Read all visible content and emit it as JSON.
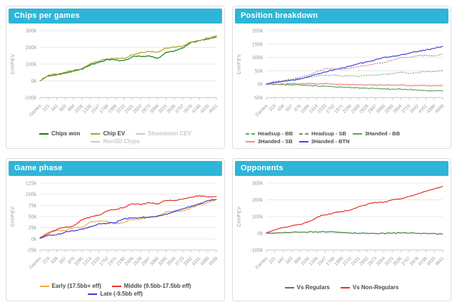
{
  "theme": {
    "header_bg": "#2eb5d8",
    "header_text": "#ffffff",
    "panel_border": "#dddddd",
    "grid_color": "#e8e8e8",
    "axis_color": "#c6c6c6",
    "tick_text_color": "#9a9a9a",
    "legend_text_color": "#4a4a4a",
    "legend_disabled_color": "#c9c9c9"
  },
  "chart_data": [
    {
      "title": "Chips per games",
      "type": "line",
      "ylabel": "CHIPEV",
      "unit": "k",
      "ylim": [
        -100,
        300
      ],
      "yticks": [
        300,
        200,
        100,
        0,
        -100
      ],
      "ytick_labels": [
        "300k",
        "200k",
        "100k",
        "0k",
        "-100k"
      ],
      "x": [
        0,
        221,
        442,
        663,
        884,
        1105,
        1326,
        1547,
        1768,
        1989,
        2210,
        2431,
        2652,
        2873,
        3094,
        3315,
        3536,
        3757,
        3978,
        4199,
        4420,
        4641
      ],
      "xtick_labels": [
        "Games",
        "221",
        "442",
        "663",
        "884",
        "1105",
        "1326",
        "1547",
        "1768",
        "1989",
        "2210",
        "2431",
        "2652",
        "2873",
        "3094",
        "3315",
        "3536",
        "3757",
        "3978",
        "4199",
        "4420",
        "4641"
      ],
      "legend_layout": "center",
      "series": [
        {
          "name": "Chips won",
          "color": "#1c7a1c",
          "dash": "solid",
          "disabled": false,
          "values": [
            0,
            30,
            36,
            48,
            58,
            68,
            95,
            110,
            127,
            125,
            121,
            144,
            146,
            150,
            133,
            170,
            178,
            196,
            230,
            242,
            250,
            262
          ]
        },
        {
          "name": "Chip EV",
          "color": "#a8a227",
          "dash": "solid",
          "disabled": false,
          "values": [
            0,
            33,
            40,
            50,
            62,
            74,
            103,
            118,
            132,
            135,
            134,
            155,
            170,
            176,
            172,
            196,
            202,
            207,
            232,
            240,
            256,
            270
          ]
        },
        {
          "name": "Showdown CEV",
          "color": "#c9c9c9",
          "dash": "solid",
          "disabled": true,
          "values": []
        },
        {
          "name": "NonSD Chips",
          "color": "#c9c9c9",
          "dash": "solid",
          "disabled": true,
          "values": []
        }
      ]
    },
    {
      "title": "Position breakdown",
      "type": "line",
      "ylabel": "CHIPEV",
      "unit": "k",
      "ylim": [
        -50,
        200
      ],
      "yticks": [
        200,
        150,
        100,
        50,
        0,
        -50
      ],
      "ytick_labels": [
        "200k",
        "150k",
        "100k",
        "50k",
        "0k",
        "-50k"
      ],
      "x": [
        0,
        219,
        438,
        657,
        876,
        1095,
        1314,
        1533,
        1752,
        1971,
        2190,
        2409,
        2628,
        2847,
        3066,
        3285,
        3504,
        3723,
        3942,
        4161,
        4380,
        4599
      ],
      "xtick_labels": [
        "Games",
        "219",
        "438",
        "657",
        "876",
        "1095",
        "1314",
        "1533",
        "1752",
        "1971",
        "2190",
        "2409",
        "2628",
        "2847",
        "3066",
        "3285",
        "3504",
        "3723",
        "3942",
        "4161",
        "4380",
        "4599"
      ],
      "legend_layout": "left",
      "series": [
        {
          "name": "Headsup - BB",
          "color": "#5ba75b",
          "dash": "dotted",
          "disabled": false,
          "values": [
            0,
            8,
            12,
            15,
            18,
            25,
            30,
            34,
            35,
            30,
            32,
            29,
            34,
            34,
            36,
            40,
            45,
            40,
            43,
            47,
            47,
            51
          ]
        },
        {
          "name": "Headsup - SB",
          "color": "#b06d69",
          "dash": "dotted",
          "disabled": false,
          "values": [
            0,
            8,
            13,
            18,
            26,
            32,
            47,
            58,
            57,
            55,
            60,
            66,
            70,
            76,
            80,
            90,
            100,
            100,
            107,
            108,
            105,
            112
          ]
        },
        {
          "name": "3Handed - BB",
          "color": "#5fa75f",
          "dash": "solid",
          "disabled": false,
          "values": [
            0,
            0,
            -1,
            -2,
            -3,
            -5,
            -6,
            -8,
            -9,
            -11,
            -12,
            -14,
            -15,
            -16,
            -17,
            -18,
            -19,
            -20,
            -22,
            -24,
            -24,
            -26
          ]
        },
        {
          "name": "3Handed - SB",
          "color": "#f28b8b",
          "dash": "solid",
          "disabled": false,
          "values": [
            0,
            2,
            1,
            3,
            2,
            3,
            1,
            3,
            0,
            -1,
            -2,
            -2,
            -3,
            -3,
            -4,
            -4,
            -4,
            -5,
            -5,
            -5,
            -6,
            -5
          ]
        },
        {
          "name": "3Handed - BTN",
          "color": "#4444e0",
          "dash": "solid",
          "disabled": false,
          "values": [
            0,
            7,
            11,
            15,
            20,
            28,
            37,
            45,
            54,
            60,
            68,
            77,
            84,
            92,
            100,
            104,
            110,
            116,
            122,
            128,
            134,
            141
          ]
        }
      ]
    },
    {
      "title": "Game phase",
      "type": "line",
      "ylabel": "CHIPEV",
      "unit": "k",
      "ylim": [
        -25,
        125
      ],
      "yticks": [
        125,
        100,
        75,
        50,
        25,
        0,
        -25
      ],
      "ytick_labels": [
        "125k",
        "100k",
        "75k",
        "50k",
        "25k",
        "0k",
        "-25k"
      ],
      "x": [
        0,
        219,
        438,
        657,
        876,
        1095,
        1314,
        1533,
        1752,
        1971,
        2190,
        2409,
        2628,
        2847,
        3066,
        3285,
        3504,
        3723,
        3942,
        4161,
        4380,
        4599
      ],
      "xtick_labels": [
        "Games",
        "219",
        "438",
        "657",
        "876",
        "1095",
        "1314",
        "1533",
        "1752",
        "1971",
        "2190",
        "2409",
        "2628",
        "2847",
        "3066",
        "3285",
        "3504",
        "3723",
        "3942",
        "4161",
        "4380",
        "4599"
      ],
      "legend_layout": "center",
      "series": [
        {
          "name": "Early (17.5bb+ eff)",
          "color": "#f5a94f",
          "dash": "solid",
          "disabled": false,
          "values": [
            2,
            15,
            19,
            18,
            25,
            25,
            38,
            40,
            39,
            34,
            37,
            43,
            45,
            49,
            50,
            61,
            60,
            63,
            70,
            76,
            81,
            88
          ]
        },
        {
          "name": "Middle (9.5bb-17.5bb eff)",
          "color": "#e63328",
          "dash": "solid",
          "disabled": false,
          "values": [
            2,
            12,
            21,
            26,
            29,
            43,
            49,
            53,
            63,
            66,
            70,
            79,
            77,
            81,
            78,
            86,
            86,
            89,
            93,
            97,
            94,
            95
          ]
        },
        {
          "name": "Late (-9.5bb eff)",
          "color": "#3a3ad1",
          "dash": "solid",
          "disabled": false,
          "values": [
            1,
            8,
            9,
            15,
            18,
            22,
            27,
            34,
            35,
            36,
            45,
            47,
            48,
            48,
            51,
            55,
            62,
            67,
            73,
            78,
            86,
            88
          ]
        }
      ]
    },
    {
      "title": "Opponents",
      "type": "line",
      "ylabel": "CHIPEV",
      "unit": "k",
      "ylim": [
        -100,
        300
      ],
      "yticks": [
        300,
        200,
        100,
        0,
        -100
      ],
      "ytick_labels": [
        "300k",
        "200k",
        "100k",
        "0k",
        "-100k"
      ],
      "x": [
        0,
        221,
        442,
        663,
        884,
        1105,
        1326,
        1547,
        1768,
        1989,
        2210,
        2431,
        2652,
        2873,
        3094,
        3315,
        3536,
        3757,
        3978,
        4199,
        4420,
        4641
      ],
      "xtick_labels": [
        "Games",
        "221",
        "442",
        "663",
        "884",
        "1105",
        "1326",
        "1547",
        "1768",
        "1989",
        "2210",
        "2431",
        "2652",
        "2873",
        "3094",
        "3315",
        "3536",
        "3757",
        "3978",
        "4199",
        "4420",
        "4641"
      ],
      "legend_layout": "center",
      "series": [
        {
          "name": "Vs Regulars",
          "color": "#478547",
          "dash": "solid",
          "disabled": false,
          "values": [
            0,
            2,
            3,
            5,
            6,
            7,
            8,
            9,
            8,
            4,
            2,
            1,
            0,
            -1,
            -1,
            1,
            2,
            1,
            0,
            -1,
            -2,
            -5
          ]
        },
        {
          "name": "Vs Non-Regulars",
          "color": "#e63328",
          "dash": "solid",
          "disabled": false,
          "values": [
            0,
            20,
            33,
            45,
            52,
            70,
            95,
            110,
            122,
            130,
            140,
            160,
            172,
            185,
            186,
            200,
            205,
            220,
            235,
            250,
            265,
            280
          ]
        }
      ]
    }
  ]
}
